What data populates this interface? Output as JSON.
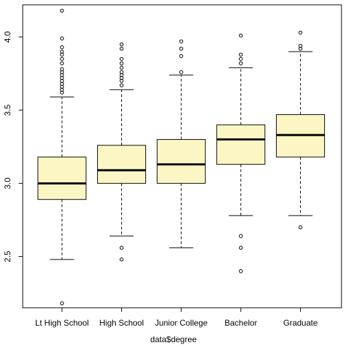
{
  "chart_data": {
    "type": "box",
    "title": "",
    "xlabel": "data$degree",
    "ylabel": "",
    "ylim": [
      2.15,
      4.22
    ],
    "yticks": [
      2.5,
      3.0,
      3.5,
      4.0
    ],
    "ytick_labels": [
      "2.5",
      "3.0",
      "3.5",
      "4.0"
    ],
    "categories": [
      "Lt High School",
      "High School",
      "Junior College",
      "Bachelor",
      "Graduate"
    ],
    "box_fill": "#fbf6c3",
    "stats": [
      {
        "category": "Lt High School",
        "whisker_low": 2.48,
        "q1": 2.89,
        "median": 3.0,
        "q3": 3.18,
        "whisker_high": 3.59,
        "outliers": [
          2.18,
          3.62,
          3.64,
          3.66,
          3.68,
          3.7,
          3.72,
          3.74,
          3.76,
          3.78,
          3.82,
          3.85,
          3.88,
          3.9,
          3.93,
          3.99,
          4.18
        ]
      },
      {
        "category": "High School",
        "whisker_low": 2.64,
        "q1": 3.0,
        "median": 3.09,
        "q3": 3.26,
        "whisker_high": 3.64,
        "outliers": [
          2.48,
          2.56,
          3.67,
          3.7,
          3.72,
          3.74,
          3.76,
          3.79,
          3.82,
          3.85,
          3.92,
          3.95
        ]
      },
      {
        "category": "Junior College",
        "whisker_low": 2.56,
        "q1": 3.0,
        "median": 3.13,
        "q3": 3.3,
        "whisker_high": 3.74,
        "outliers": [
          3.76,
          3.87,
          3.92,
          3.97
        ]
      },
      {
        "category": "Bachelor",
        "whisker_low": 2.78,
        "q1": 3.13,
        "median": 3.3,
        "q3": 3.4,
        "whisker_high": 3.79,
        "outliers": [
          2.4,
          2.56,
          2.64,
          3.82,
          3.85,
          3.88,
          4.01
        ]
      },
      {
        "category": "Graduate",
        "whisker_low": 2.78,
        "q1": 3.18,
        "median": 3.33,
        "q3": 3.47,
        "whisker_high": 3.9,
        "outliers": [
          2.7,
          3.92,
          3.94,
          4.03
        ]
      }
    ]
  }
}
